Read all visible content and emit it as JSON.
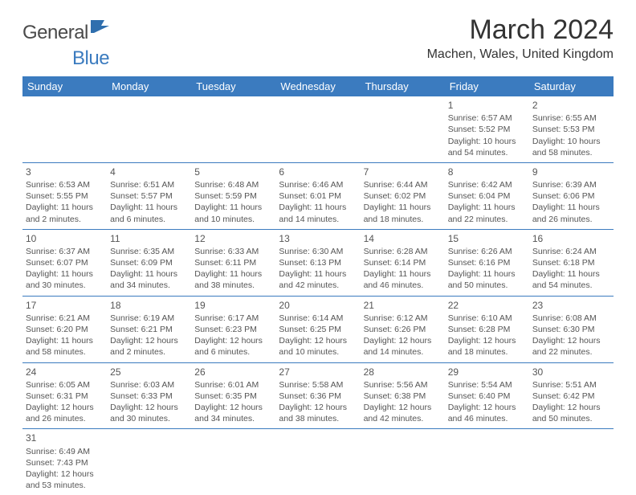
{
  "logo": {
    "part1": "General",
    "part2": "Blue"
  },
  "title": "March 2024",
  "location": "Machen, Wales, United Kingdom",
  "colors": {
    "header_bg": "#3b7bbf",
    "header_text": "#ffffff",
    "border": "#3b7bbf",
    "text": "#444444",
    "background": "#ffffff"
  },
  "day_headers": [
    "Sunday",
    "Monday",
    "Tuesday",
    "Wednesday",
    "Thursday",
    "Friday",
    "Saturday"
  ],
  "weeks": [
    [
      null,
      null,
      null,
      null,
      null,
      {
        "n": "1",
        "sunrise": "Sunrise: 6:57 AM",
        "sunset": "Sunset: 5:52 PM",
        "daylight": "Daylight: 10 hours and 54 minutes."
      },
      {
        "n": "2",
        "sunrise": "Sunrise: 6:55 AM",
        "sunset": "Sunset: 5:53 PM",
        "daylight": "Daylight: 10 hours and 58 minutes."
      }
    ],
    [
      {
        "n": "3",
        "sunrise": "Sunrise: 6:53 AM",
        "sunset": "Sunset: 5:55 PM",
        "daylight": "Daylight: 11 hours and 2 minutes."
      },
      {
        "n": "4",
        "sunrise": "Sunrise: 6:51 AM",
        "sunset": "Sunset: 5:57 PM",
        "daylight": "Daylight: 11 hours and 6 minutes."
      },
      {
        "n": "5",
        "sunrise": "Sunrise: 6:48 AM",
        "sunset": "Sunset: 5:59 PM",
        "daylight": "Daylight: 11 hours and 10 minutes."
      },
      {
        "n": "6",
        "sunrise": "Sunrise: 6:46 AM",
        "sunset": "Sunset: 6:01 PM",
        "daylight": "Daylight: 11 hours and 14 minutes."
      },
      {
        "n": "7",
        "sunrise": "Sunrise: 6:44 AM",
        "sunset": "Sunset: 6:02 PM",
        "daylight": "Daylight: 11 hours and 18 minutes."
      },
      {
        "n": "8",
        "sunrise": "Sunrise: 6:42 AM",
        "sunset": "Sunset: 6:04 PM",
        "daylight": "Daylight: 11 hours and 22 minutes."
      },
      {
        "n": "9",
        "sunrise": "Sunrise: 6:39 AM",
        "sunset": "Sunset: 6:06 PM",
        "daylight": "Daylight: 11 hours and 26 minutes."
      }
    ],
    [
      {
        "n": "10",
        "sunrise": "Sunrise: 6:37 AM",
        "sunset": "Sunset: 6:07 PM",
        "daylight": "Daylight: 11 hours and 30 minutes."
      },
      {
        "n": "11",
        "sunrise": "Sunrise: 6:35 AM",
        "sunset": "Sunset: 6:09 PM",
        "daylight": "Daylight: 11 hours and 34 minutes."
      },
      {
        "n": "12",
        "sunrise": "Sunrise: 6:33 AM",
        "sunset": "Sunset: 6:11 PM",
        "daylight": "Daylight: 11 hours and 38 minutes."
      },
      {
        "n": "13",
        "sunrise": "Sunrise: 6:30 AM",
        "sunset": "Sunset: 6:13 PM",
        "daylight": "Daylight: 11 hours and 42 minutes."
      },
      {
        "n": "14",
        "sunrise": "Sunrise: 6:28 AM",
        "sunset": "Sunset: 6:14 PM",
        "daylight": "Daylight: 11 hours and 46 minutes."
      },
      {
        "n": "15",
        "sunrise": "Sunrise: 6:26 AM",
        "sunset": "Sunset: 6:16 PM",
        "daylight": "Daylight: 11 hours and 50 minutes."
      },
      {
        "n": "16",
        "sunrise": "Sunrise: 6:24 AM",
        "sunset": "Sunset: 6:18 PM",
        "daylight": "Daylight: 11 hours and 54 minutes."
      }
    ],
    [
      {
        "n": "17",
        "sunrise": "Sunrise: 6:21 AM",
        "sunset": "Sunset: 6:20 PM",
        "daylight": "Daylight: 11 hours and 58 minutes."
      },
      {
        "n": "18",
        "sunrise": "Sunrise: 6:19 AM",
        "sunset": "Sunset: 6:21 PM",
        "daylight": "Daylight: 12 hours and 2 minutes."
      },
      {
        "n": "19",
        "sunrise": "Sunrise: 6:17 AM",
        "sunset": "Sunset: 6:23 PM",
        "daylight": "Daylight: 12 hours and 6 minutes."
      },
      {
        "n": "20",
        "sunrise": "Sunrise: 6:14 AM",
        "sunset": "Sunset: 6:25 PM",
        "daylight": "Daylight: 12 hours and 10 minutes."
      },
      {
        "n": "21",
        "sunrise": "Sunrise: 6:12 AM",
        "sunset": "Sunset: 6:26 PM",
        "daylight": "Daylight: 12 hours and 14 minutes."
      },
      {
        "n": "22",
        "sunrise": "Sunrise: 6:10 AM",
        "sunset": "Sunset: 6:28 PM",
        "daylight": "Daylight: 12 hours and 18 minutes."
      },
      {
        "n": "23",
        "sunrise": "Sunrise: 6:08 AM",
        "sunset": "Sunset: 6:30 PM",
        "daylight": "Daylight: 12 hours and 22 minutes."
      }
    ],
    [
      {
        "n": "24",
        "sunrise": "Sunrise: 6:05 AM",
        "sunset": "Sunset: 6:31 PM",
        "daylight": "Daylight: 12 hours and 26 minutes."
      },
      {
        "n": "25",
        "sunrise": "Sunrise: 6:03 AM",
        "sunset": "Sunset: 6:33 PM",
        "daylight": "Daylight: 12 hours and 30 minutes."
      },
      {
        "n": "26",
        "sunrise": "Sunrise: 6:01 AM",
        "sunset": "Sunset: 6:35 PM",
        "daylight": "Daylight: 12 hours and 34 minutes."
      },
      {
        "n": "27",
        "sunrise": "Sunrise: 5:58 AM",
        "sunset": "Sunset: 6:36 PM",
        "daylight": "Daylight: 12 hours and 38 minutes."
      },
      {
        "n": "28",
        "sunrise": "Sunrise: 5:56 AM",
        "sunset": "Sunset: 6:38 PM",
        "daylight": "Daylight: 12 hours and 42 minutes."
      },
      {
        "n": "29",
        "sunrise": "Sunrise: 5:54 AM",
        "sunset": "Sunset: 6:40 PM",
        "daylight": "Daylight: 12 hours and 46 minutes."
      },
      {
        "n": "30",
        "sunrise": "Sunrise: 5:51 AM",
        "sunset": "Sunset: 6:42 PM",
        "daylight": "Daylight: 12 hours and 50 minutes."
      }
    ],
    [
      {
        "n": "31",
        "sunrise": "Sunrise: 6:49 AM",
        "sunset": "Sunset: 7:43 PM",
        "daylight": "Daylight: 12 hours and 53 minutes."
      },
      null,
      null,
      null,
      null,
      null,
      null
    ]
  ]
}
